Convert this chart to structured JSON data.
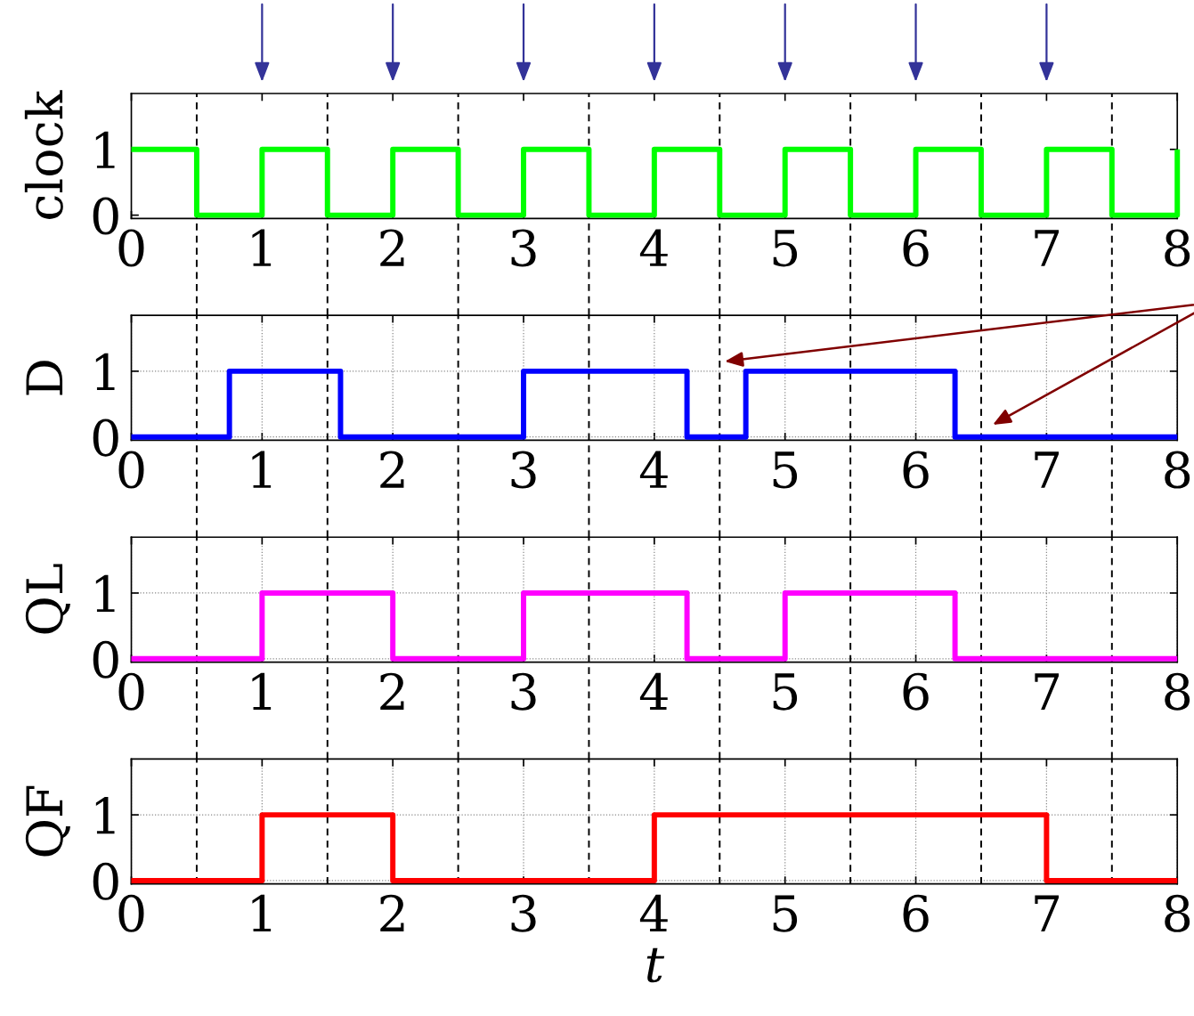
{
  "chart_data": [
    {
      "type": "step",
      "ylabel": "clock",
      "x": [
        0,
        0.5,
        1,
        1.5,
        2,
        2.5,
        3,
        3.5,
        4,
        4.5,
        5,
        5.5,
        6,
        6.5,
        7,
        7.5,
        8
      ],
      "values": [
        1,
        0,
        1,
        0,
        1,
        0,
        1,
        0,
        1,
        0,
        1,
        0,
        1,
        0,
        1,
        0,
        1
      ],
      "color": "#00ff00",
      "xlim": [
        0,
        8
      ],
      "xticks": [
        0,
        1,
        2,
        3,
        4,
        5,
        6,
        7,
        8
      ],
      "ylim": [
        -0.05,
        1.85
      ],
      "yticks": [
        0,
        1
      ],
      "grid": false,
      "ref_lines": [
        {
          "axis": "x",
          "value": 0.5,
          "color": "#000000",
          "line_style": "dashed"
        },
        {
          "axis": "x",
          "value": 1.5,
          "color": "#000000",
          "line_style": "dashed"
        },
        {
          "axis": "x",
          "value": 2.5,
          "color": "#000000",
          "line_style": "dashed"
        },
        {
          "axis": "x",
          "value": 3.5,
          "color": "#000000",
          "line_style": "dashed"
        },
        {
          "axis": "x",
          "value": 4.5,
          "color": "#000000",
          "line_style": "dashed"
        },
        {
          "axis": "x",
          "value": 5.5,
          "color": "#000000",
          "line_style": "dashed"
        },
        {
          "axis": "x",
          "value": 6.5,
          "color": "#000000",
          "line_style": "dashed"
        },
        {
          "axis": "x",
          "value": 7.5,
          "color": "#000000",
          "line_style": "dashed"
        }
      ]
    },
    {
      "type": "step",
      "ylabel": "D",
      "x": [
        0,
        0.75,
        1.6,
        3,
        4.25,
        4.7,
        6.3,
        8
      ],
      "values": [
        0,
        1,
        0,
        1,
        0,
        1,
        0,
        0
      ],
      "color": "#0000ff",
      "xlim": [
        0,
        8
      ],
      "xticks": [
        0,
        1,
        2,
        3,
        4,
        5,
        6,
        7,
        8
      ],
      "ylim": [
        -0.05,
        1.85
      ],
      "yticks": [
        0,
        1
      ],
      "grid": true,
      "ref_lines": [
        {
          "axis": "x",
          "value": 0.5,
          "color": "#000000",
          "line_style": "dashed"
        },
        {
          "axis": "x",
          "value": 1.5,
          "color": "#000000",
          "line_style": "dashed"
        },
        {
          "axis": "x",
          "value": 2.5,
          "color": "#000000",
          "line_style": "dashed"
        },
        {
          "axis": "x",
          "value": 3.5,
          "color": "#000000",
          "line_style": "dashed"
        },
        {
          "axis": "x",
          "value": 4.5,
          "color": "#000000",
          "line_style": "dashed"
        },
        {
          "axis": "x",
          "value": 5.5,
          "color": "#000000",
          "line_style": "dashed"
        },
        {
          "axis": "x",
          "value": 6.5,
          "color": "#000000",
          "line_style": "dashed"
        },
        {
          "axis": "x",
          "value": 7.5,
          "color": "#000000",
          "line_style": "dashed"
        }
      ]
    },
    {
      "type": "step",
      "ylabel": "QL",
      "x": [
        0,
        1,
        2,
        3,
        4.25,
        5,
        6.3,
        8
      ],
      "values": [
        0,
        1,
        0,
        1,
        0,
        1,
        0,
        0
      ],
      "color": "#ff00ff",
      "xlim": [
        0,
        8
      ],
      "xticks": [
        0,
        1,
        2,
        3,
        4,
        5,
        6,
        7,
        8
      ],
      "ylim": [
        -0.05,
        1.85
      ],
      "yticks": [
        0,
        1
      ],
      "grid": true,
      "ref_lines": [
        {
          "axis": "x",
          "value": 0.5,
          "color": "#000000",
          "line_style": "dashed"
        },
        {
          "axis": "x",
          "value": 1.5,
          "color": "#000000",
          "line_style": "dashed"
        },
        {
          "axis": "x",
          "value": 2.5,
          "color": "#000000",
          "line_style": "dashed"
        },
        {
          "axis": "x",
          "value": 3.5,
          "color": "#000000",
          "line_style": "dashed"
        },
        {
          "axis": "x",
          "value": 4.5,
          "color": "#000000",
          "line_style": "dashed"
        },
        {
          "axis": "x",
          "value": 5.5,
          "color": "#000000",
          "line_style": "dashed"
        },
        {
          "axis": "x",
          "value": 6.5,
          "color": "#000000",
          "line_style": "dashed"
        },
        {
          "axis": "x",
          "value": 7.5,
          "color": "#000000",
          "line_style": "dashed"
        }
      ]
    },
    {
      "type": "step",
      "ylabel": "QF",
      "xlabel": "t",
      "x": [
        0,
        1,
        2,
        4,
        7,
        8
      ],
      "values": [
        0,
        1,
        0,
        1,
        0,
        0
      ],
      "color": "#ff0000",
      "xlim": [
        0,
        8
      ],
      "xticks": [
        0,
        1,
        2,
        3,
        4,
        5,
        6,
        7,
        8
      ],
      "ylim": [
        -0.05,
        1.85
      ],
      "yticks": [
        0,
        1
      ],
      "grid": true,
      "ref_lines": [
        {
          "axis": "x",
          "value": 0.5,
          "color": "#000000",
          "line_style": "dashed"
        },
        {
          "axis": "x",
          "value": 1.5,
          "color": "#000000",
          "line_style": "dashed"
        },
        {
          "axis": "x",
          "value": 2.5,
          "color": "#000000",
          "line_style": "dashed"
        },
        {
          "axis": "x",
          "value": 3.5,
          "color": "#000000",
          "line_style": "dashed"
        },
        {
          "axis": "x",
          "value": 4.5,
          "color": "#000000",
          "line_style": "dashed"
        },
        {
          "axis": "x",
          "value": 5.5,
          "color": "#000000",
          "line_style": "dashed"
        },
        {
          "axis": "x",
          "value": 6.5,
          "color": "#000000",
          "line_style": "dashed"
        },
        {
          "axis": "x",
          "value": 7.5,
          "color": "#000000",
          "line_style": "dashed"
        }
      ]
    }
  ]
}
